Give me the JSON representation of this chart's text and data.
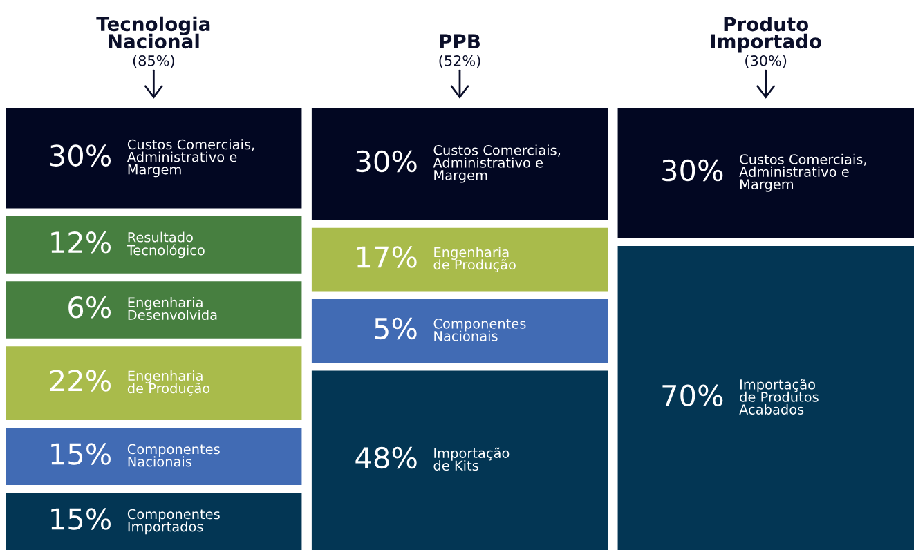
{
  "chart_data": [
    {
      "type": "other",
      "title": "Tecnologia\nNacional",
      "subtitle": "(85%)",
      "categories": [
        "Custos Comerciais,\nAdministrativo e\nMargem",
        "Resultado\nTecnológico",
        "Engenharia\nDesenvolvida",
        "Engenharia\nde Produção",
        "Componentes\nNacionais",
        "Componentes\nImportados"
      ],
      "values": [
        30,
        12,
        6,
        22,
        15,
        15
      ],
      "value_labels": [
        "30%",
        "12%",
        "6%",
        "22%",
        "15%",
        "15%"
      ],
      "colors": [
        "#020722",
        "#477f40",
        "#477f40",
        "#a9bb4b",
        "#416bb4",
        "#033654"
      ]
    },
    {
      "type": "other",
      "title": "PPB",
      "subtitle": "(52%)",
      "categories": [
        "Custos Comerciais,\nAdministrativo e\nMargem",
        "Engenharia\nde Produção",
        "Componentes\nNacionais",
        "Importação\nde Kits"
      ],
      "values": [
        30,
        17,
        5,
        48
      ],
      "value_labels": [
        "30%",
        "17%",
        "5%",
        "48%"
      ],
      "colors": [
        "#020722",
        "#a9bb4b",
        "#416bb4",
        "#033654"
      ]
    },
    {
      "type": "other",
      "title": "Produto\nImportado",
      "subtitle": "(30%)",
      "categories": [
        "Custos Comerciais,\nAdministrativo e\nMargem",
        "Importação\nde Produtos\nAcabados"
      ],
      "values": [
        30,
        70
      ],
      "value_labels": [
        "30%",
        "70%"
      ],
      "colors": [
        "#020722",
        "#033654"
      ]
    }
  ]
}
